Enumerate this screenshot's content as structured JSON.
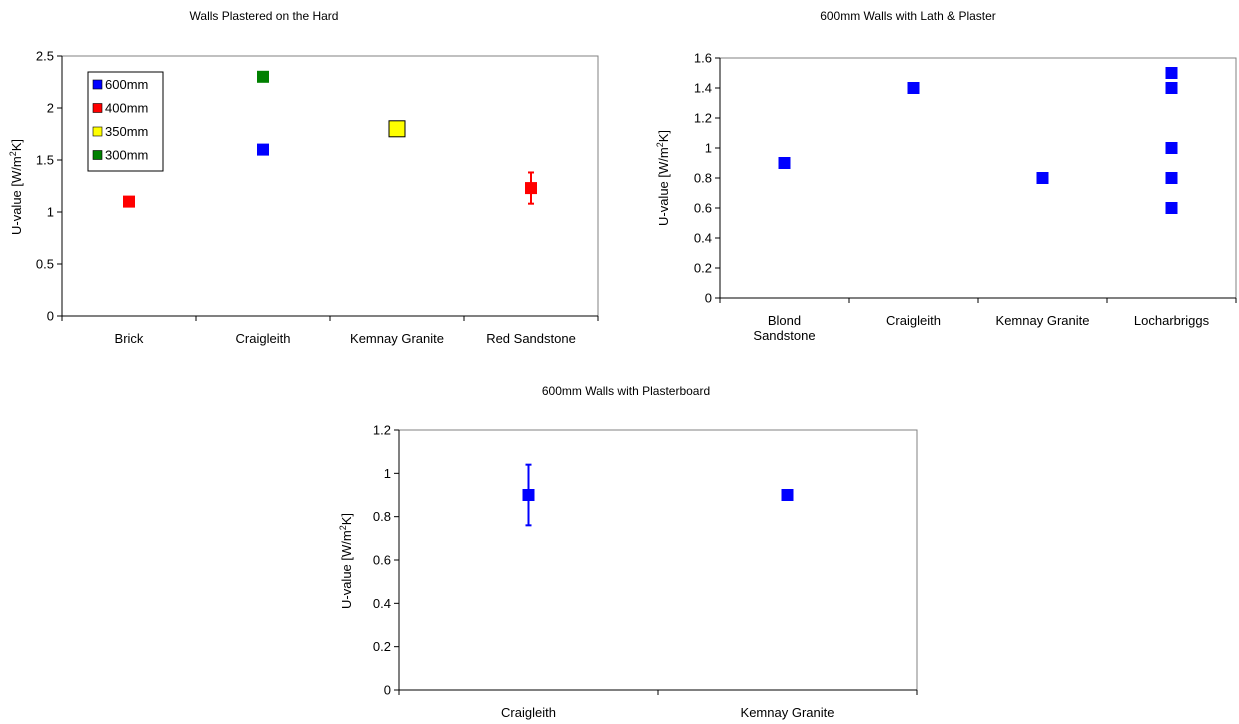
{
  "chart_data": [
    {
      "type": "scatter",
      "title": "Walls Plastered on the Hard",
      "ylabel_main": "U-value [W/m",
      "ylabel_sup": "2",
      "ylabel_tail": "K]",
      "categories": [
        "Brick",
        "Craigleith",
        "Kemnay Granite",
        "Red Sandstone"
      ],
      "ylim": [
        0,
        2.5
      ],
      "yticks": [
        0,
        0.5,
        1,
        1.5,
        2,
        2.5
      ],
      "ytick_labels": [
        "0",
        "0.5",
        "1",
        "1.5",
        "2",
        "2.5"
      ],
      "grid": false,
      "legend_position": "top-left",
      "series": [
        {
          "name": "600mm",
          "color": "#0000ff",
          "points": [
            {
              "category": "Craigleith",
              "y": 1.6
            }
          ]
        },
        {
          "name": "400mm",
          "color": "#ff0000",
          "points": [
            {
              "category": "Brick",
              "y": 1.1
            },
            {
              "category": "Red Sandstone",
              "y": 1.23,
              "err_low": 1.08,
              "err_high": 1.38
            }
          ]
        },
        {
          "name": "350mm",
          "color": "#ffff00",
          "points": [
            {
              "category": "Kemnay Granite",
              "y": 1.8
            }
          ]
        },
        {
          "name": "300mm",
          "color": "#008000",
          "points": [
            {
              "category": "Craigleith",
              "y": 2.3
            }
          ]
        }
      ]
    },
    {
      "type": "scatter",
      "title": "600mm Walls with Lath & Plaster",
      "ylabel_main": "U-value [W/m",
      "ylabel_sup": "2",
      "ylabel_tail": "K]",
      "categories": [
        "Blond Sandstone",
        "Craigleith",
        "Kemnay Granite",
        "Locharbriggs"
      ],
      "category_lines": [
        [
          "Blond",
          "Sandstone"
        ],
        [
          "Craigleith"
        ],
        [
          "Kemnay Granite"
        ],
        [
          "Locharbriggs"
        ]
      ],
      "ylim": [
        0,
        1.6
      ],
      "yticks": [
        0,
        0.2,
        0.4,
        0.6,
        0.8,
        1,
        1.2,
        1.4,
        1.6
      ],
      "ytick_labels": [
        "0",
        "0.2",
        "0.4",
        "0.6",
        "0.8",
        "1",
        "1.2",
        "1.4",
        "1.6"
      ],
      "grid": false,
      "series": [
        {
          "color": "#0000ff",
          "points": [
            {
              "category": "Blond Sandstone",
              "y": 0.9
            },
            {
              "category": "Craigleith",
              "y": 1.4
            },
            {
              "category": "Kemnay Granite",
              "y": 0.8
            },
            {
              "category": "Locharbriggs",
              "y": 1.5
            },
            {
              "category": "Locharbriggs",
              "y": 1.4
            },
            {
              "category": "Locharbriggs",
              "y": 1.0
            },
            {
              "category": "Locharbriggs",
              "y": 0.8
            },
            {
              "category": "Locharbriggs",
              "y": 0.6
            }
          ]
        }
      ]
    },
    {
      "type": "scatter",
      "title": "600mm Walls with Plasterboard",
      "ylabel_main": "U-value [W/m",
      "ylabel_sup": "2",
      "ylabel_tail": "K]",
      "categories": [
        "Craigleith",
        "Kemnay Granite"
      ],
      "ylim": [
        0,
        1.2
      ],
      "yticks": [
        0,
        0.2,
        0.4,
        0.6,
        0.8,
        1,
        1.2
      ],
      "ytick_labels": [
        "0",
        "0.2",
        "0.4",
        "0.6",
        "0.8",
        "1",
        "1.2"
      ],
      "grid": false,
      "series": [
        {
          "color": "#0000ff",
          "points": [
            {
              "category": "Craigleith",
              "y": 0.9,
              "err_low": 0.76,
              "err_high": 1.04
            },
            {
              "category": "Kemnay Granite",
              "y": 0.9
            }
          ]
        }
      ]
    }
  ]
}
